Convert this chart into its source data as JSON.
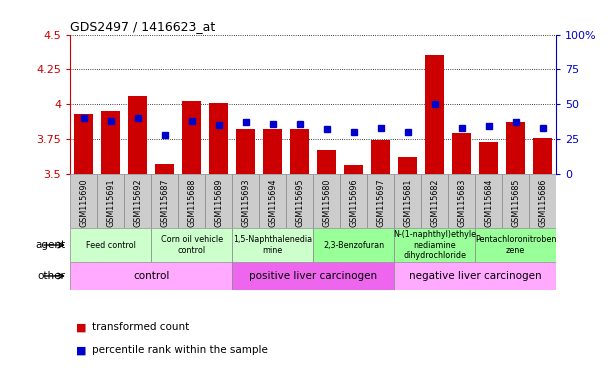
{
  "title": "GDS2497 / 1416623_at",
  "samples": [
    "GSM115690",
    "GSM115691",
    "GSM115692",
    "GSM115687",
    "GSM115688",
    "GSM115689",
    "GSM115693",
    "GSM115694",
    "GSM115695",
    "GSM115680",
    "GSM115696",
    "GSM115697",
    "GSM115681",
    "GSM115682",
    "GSM115683",
    "GSM115684",
    "GSM115685",
    "GSM115686"
  ],
  "transformed_count": [
    3.93,
    3.95,
    4.06,
    3.57,
    4.02,
    4.01,
    3.82,
    3.82,
    3.82,
    3.67,
    3.56,
    3.74,
    3.62,
    4.35,
    3.79,
    3.73,
    3.87,
    3.76
  ],
  "percentile_rank": [
    40,
    38,
    40,
    28,
    38,
    35,
    37,
    36,
    36,
    32,
    30,
    33,
    30,
    50,
    33,
    34,
    37,
    33
  ],
  "ymin": 3.5,
  "ymax": 4.5,
  "yticks": [
    3.5,
    3.75,
    4.0,
    4.25,
    4.5
  ],
  "ytick_labels": [
    "3.5",
    "3.75",
    "4",
    "4.25",
    "4.5"
  ],
  "y2min": 0,
  "y2max": 100,
  "y2ticks": [
    0,
    25,
    50,
    75,
    100
  ],
  "y2tick_labels": [
    "0",
    "25",
    "50",
    "75",
    "100%"
  ],
  "bar_color": "#cc0000",
  "dot_color": "#0000cc",
  "agent_groups": [
    {
      "label": "Feed control",
      "start": 0,
      "end": 3,
      "color": "#ccffcc"
    },
    {
      "label": "Corn oil vehicle\ncontrol",
      "start": 3,
      "end": 6,
      "color": "#ccffcc"
    },
    {
      "label": "1,5-Naphthalenedia\nmine",
      "start": 6,
      "end": 9,
      "color": "#ccffcc"
    },
    {
      "label": "2,3-Benzofuran",
      "start": 9,
      "end": 12,
      "color": "#99ff99"
    },
    {
      "label": "N-(1-naphthyl)ethyle\nnediamine\ndihydrochloride",
      "start": 12,
      "end": 15,
      "color": "#99ff99"
    },
    {
      "label": "Pentachloronitroben\nzene",
      "start": 15,
      "end": 18,
      "color": "#99ff99"
    }
  ],
  "other_groups": [
    {
      "label": "control",
      "start": 0,
      "end": 6,
      "color": "#ffaaff"
    },
    {
      "label": "positive liver carcinogen",
      "start": 6,
      "end": 12,
      "color": "#ee66ee"
    },
    {
      "label": "negative liver carcinogen",
      "start": 12,
      "end": 18,
      "color": "#ffaaff"
    }
  ],
  "agent_label": "agent",
  "other_label": "other",
  "legend_bar_label": "transformed count",
  "legend_dot_label": "percentile rank within the sample",
  "grid_color": "#000000",
  "bg_color": "#ffffff",
  "sample_row_color": "#cccccc",
  "agent_border_color": "#888888"
}
